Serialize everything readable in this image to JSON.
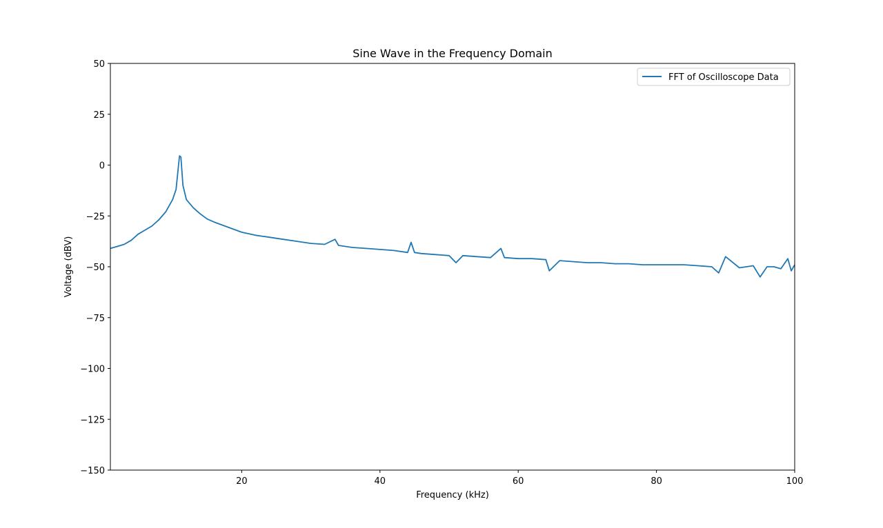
{
  "chart_data": {
    "type": "line",
    "title": "Sine Wave in the Frequency Domain",
    "xlabel": "Frequency (kHz)",
    "ylabel": "Voltage (dBV)",
    "xlim": [
      1,
      100
    ],
    "ylim": [
      -150,
      50
    ],
    "xticks": [
      20,
      40,
      60,
      80,
      100
    ],
    "yticks": [
      50,
      25,
      0,
      -25,
      -50,
      -75,
      -100,
      -125,
      -150
    ],
    "ytick_labels": [
      "50",
      "25",
      "0",
      "−25",
      "−50",
      "−75",
      "−100",
      "−125",
      "−150"
    ],
    "grid": false,
    "legend_position": "top-right",
    "series": [
      {
        "name": "FFT of Oscilloscope Data",
        "color": "#1f77b4",
        "x": [
          1,
          2,
          3,
          4,
          5,
          6,
          7,
          8,
          9,
          10,
          10.5,
          11,
          11.2,
          11.5,
          12,
          13,
          14,
          15,
          16,
          18,
          20,
          22,
          24,
          26,
          28,
          30,
          32,
          33.5,
          34,
          36,
          38,
          40,
          42,
          44,
          44.5,
          45,
          46,
          48,
          50,
          51,
          52,
          54,
          56,
          57.5,
          58,
          60,
          62,
          64,
          64.5,
          66,
          68,
          70,
          72,
          74,
          76,
          78,
          80,
          82,
          84,
          86,
          88,
          89,
          90,
          92,
          94,
          95,
          96,
          97,
          98,
          99,
          99.5,
          100
        ],
        "y": [
          -41,
          -40,
          -39,
          -37,
          -34,
          -32,
          -30,
          -27,
          -23,
          -17,
          -12,
          4.5,
          4,
          -10,
          -17,
          -21,
          -24,
          -26.5,
          -28,
          -30.5,
          -33,
          -34.5,
          -35.5,
          -36.5,
          -37.5,
          -38.5,
          -39,
          -36.5,
          -39.5,
          -40.5,
          -41,
          -41.5,
          -42,
          -43,
          -38,
          -43,
          -43.5,
          -44,
          -44.5,
          -48,
          -44.5,
          -45,
          -45.5,
          -41,
          -45.5,
          -46,
          -46,
          -46.5,
          -52,
          -47,
          -47.5,
          -48,
          -48,
          -48.5,
          -48.5,
          -49,
          -49,
          -49,
          -49,
          -49.5,
          -50,
          -53,
          -45,
          -50.5,
          -49.5,
          -55,
          -50,
          -50,
          -51,
          -46,
          -52,
          -49
        ]
      }
    ]
  }
}
